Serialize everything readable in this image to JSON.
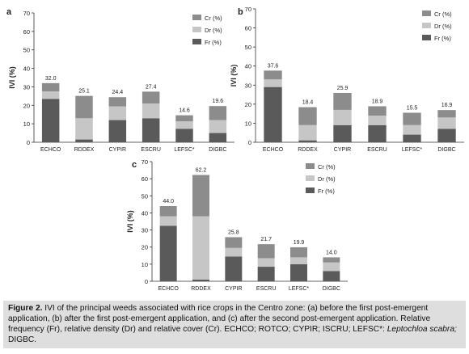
{
  "chart_data": [
    {
      "panel": "a",
      "type": "bar",
      "stacked": true,
      "categories": [
        "ECHCO",
        "RDDEX",
        "CYPIR",
        "ESCRU",
        "LEFSC*",
        "DIGBC"
      ],
      "totals": [
        "32.0",
        "25.1",
        "24.4",
        "27.4",
        "14.6",
        "19.6"
      ],
      "series": [
        {
          "name": "Fr (%)",
          "values": [
            23.5,
            1.5,
            12.0,
            13.0,
            7.3,
            5.0
          ]
        },
        {
          "name": "Dr (%)",
          "values": [
            4.0,
            11.5,
            7.4,
            8.0,
            4.0,
            7.0
          ]
        },
        {
          "name": "Cr (%)",
          "values": [
            4.5,
            12.1,
            5.0,
            6.4,
            3.3,
            7.6
          ]
        }
      ],
      "ylabel": "IVI (%)",
      "ylim": [
        0,
        70
      ],
      "yticks": [
        0,
        10,
        20,
        30,
        40,
        50,
        60,
        70
      ],
      "legend": "top-right"
    },
    {
      "panel": "b",
      "type": "bar",
      "stacked": true,
      "categories": [
        "ECHCO",
        "RDDEX",
        "CYPIR",
        "ESCRU",
        "LEFSC*",
        "DIGBC"
      ],
      "totals": [
        "37.6",
        "18.4",
        "25.9",
        "18.9",
        "15.5",
        "16.9"
      ],
      "series": [
        {
          "name": "Fr (%)",
          "values": [
            29.0,
            1.0,
            9.0,
            9.0,
            4.0,
            7.0
          ]
        },
        {
          "name": "Dr (%)",
          "values": [
            4.0,
            8.0,
            8.0,
            5.0,
            5.0,
            6.0
          ]
        },
        {
          "name": "Cr (%)",
          "values": [
            4.6,
            9.4,
            8.9,
            4.9,
            6.5,
            3.9
          ]
        }
      ],
      "ylabel": "IVI (%)",
      "ylim": [
        0,
        70
      ],
      "yticks": [
        0,
        10,
        20,
        30,
        40,
        50,
        60,
        70
      ],
      "legend": "top-right"
    },
    {
      "panel": "c",
      "type": "bar",
      "stacked": true,
      "categories": [
        "ECHCO",
        "RDDEX",
        "CYPIR",
        "ESCRU",
        "LEFSC*",
        "DIGBC"
      ],
      "totals": [
        "44.0",
        "62.2",
        "25.8",
        "21.7",
        "19.9",
        "14.0"
      ],
      "series": [
        {
          "name": "Fr (%)",
          "values": [
            32.5,
            1.0,
            14.5,
            8.5,
            10.0,
            6.0
          ]
        },
        {
          "name": "Dr (%)",
          "values": [
            5.5,
            37.0,
            5.0,
            5.0,
            4.0,
            5.0
          ]
        },
        {
          "name": "Cr (%)",
          "values": [
            6.0,
            24.2,
            6.3,
            8.2,
            5.9,
            3.0
          ]
        }
      ],
      "ylabel": "IVI (%)",
      "ylim": [
        0,
        70
      ],
      "yticks": [
        0,
        10,
        20,
        30,
        40,
        50,
        60,
        70
      ],
      "legend": "top-right"
    }
  ],
  "series_colors": {
    "Cr (%)": "#8c8c8c",
    "Dr (%)": "#c6c6c6",
    "Fr (%)": "#5a5a5a"
  },
  "caption": {
    "label": "Figure 2.",
    "text": " IVI of the principal weeds associated with rice crops in the Centro zone: (a) before the first post-emergent application, (b) after the first post-emergent application, and (c) after the second post-emergent application. Relative frequency (Fr), relative density (Dr) and relative cover (Cr). ECHCO; ROTCO; CYPIR; ISCRU; LEFSC*: ",
    "italic": "Leptochloa scabra;",
    "end": " DIGBC."
  }
}
